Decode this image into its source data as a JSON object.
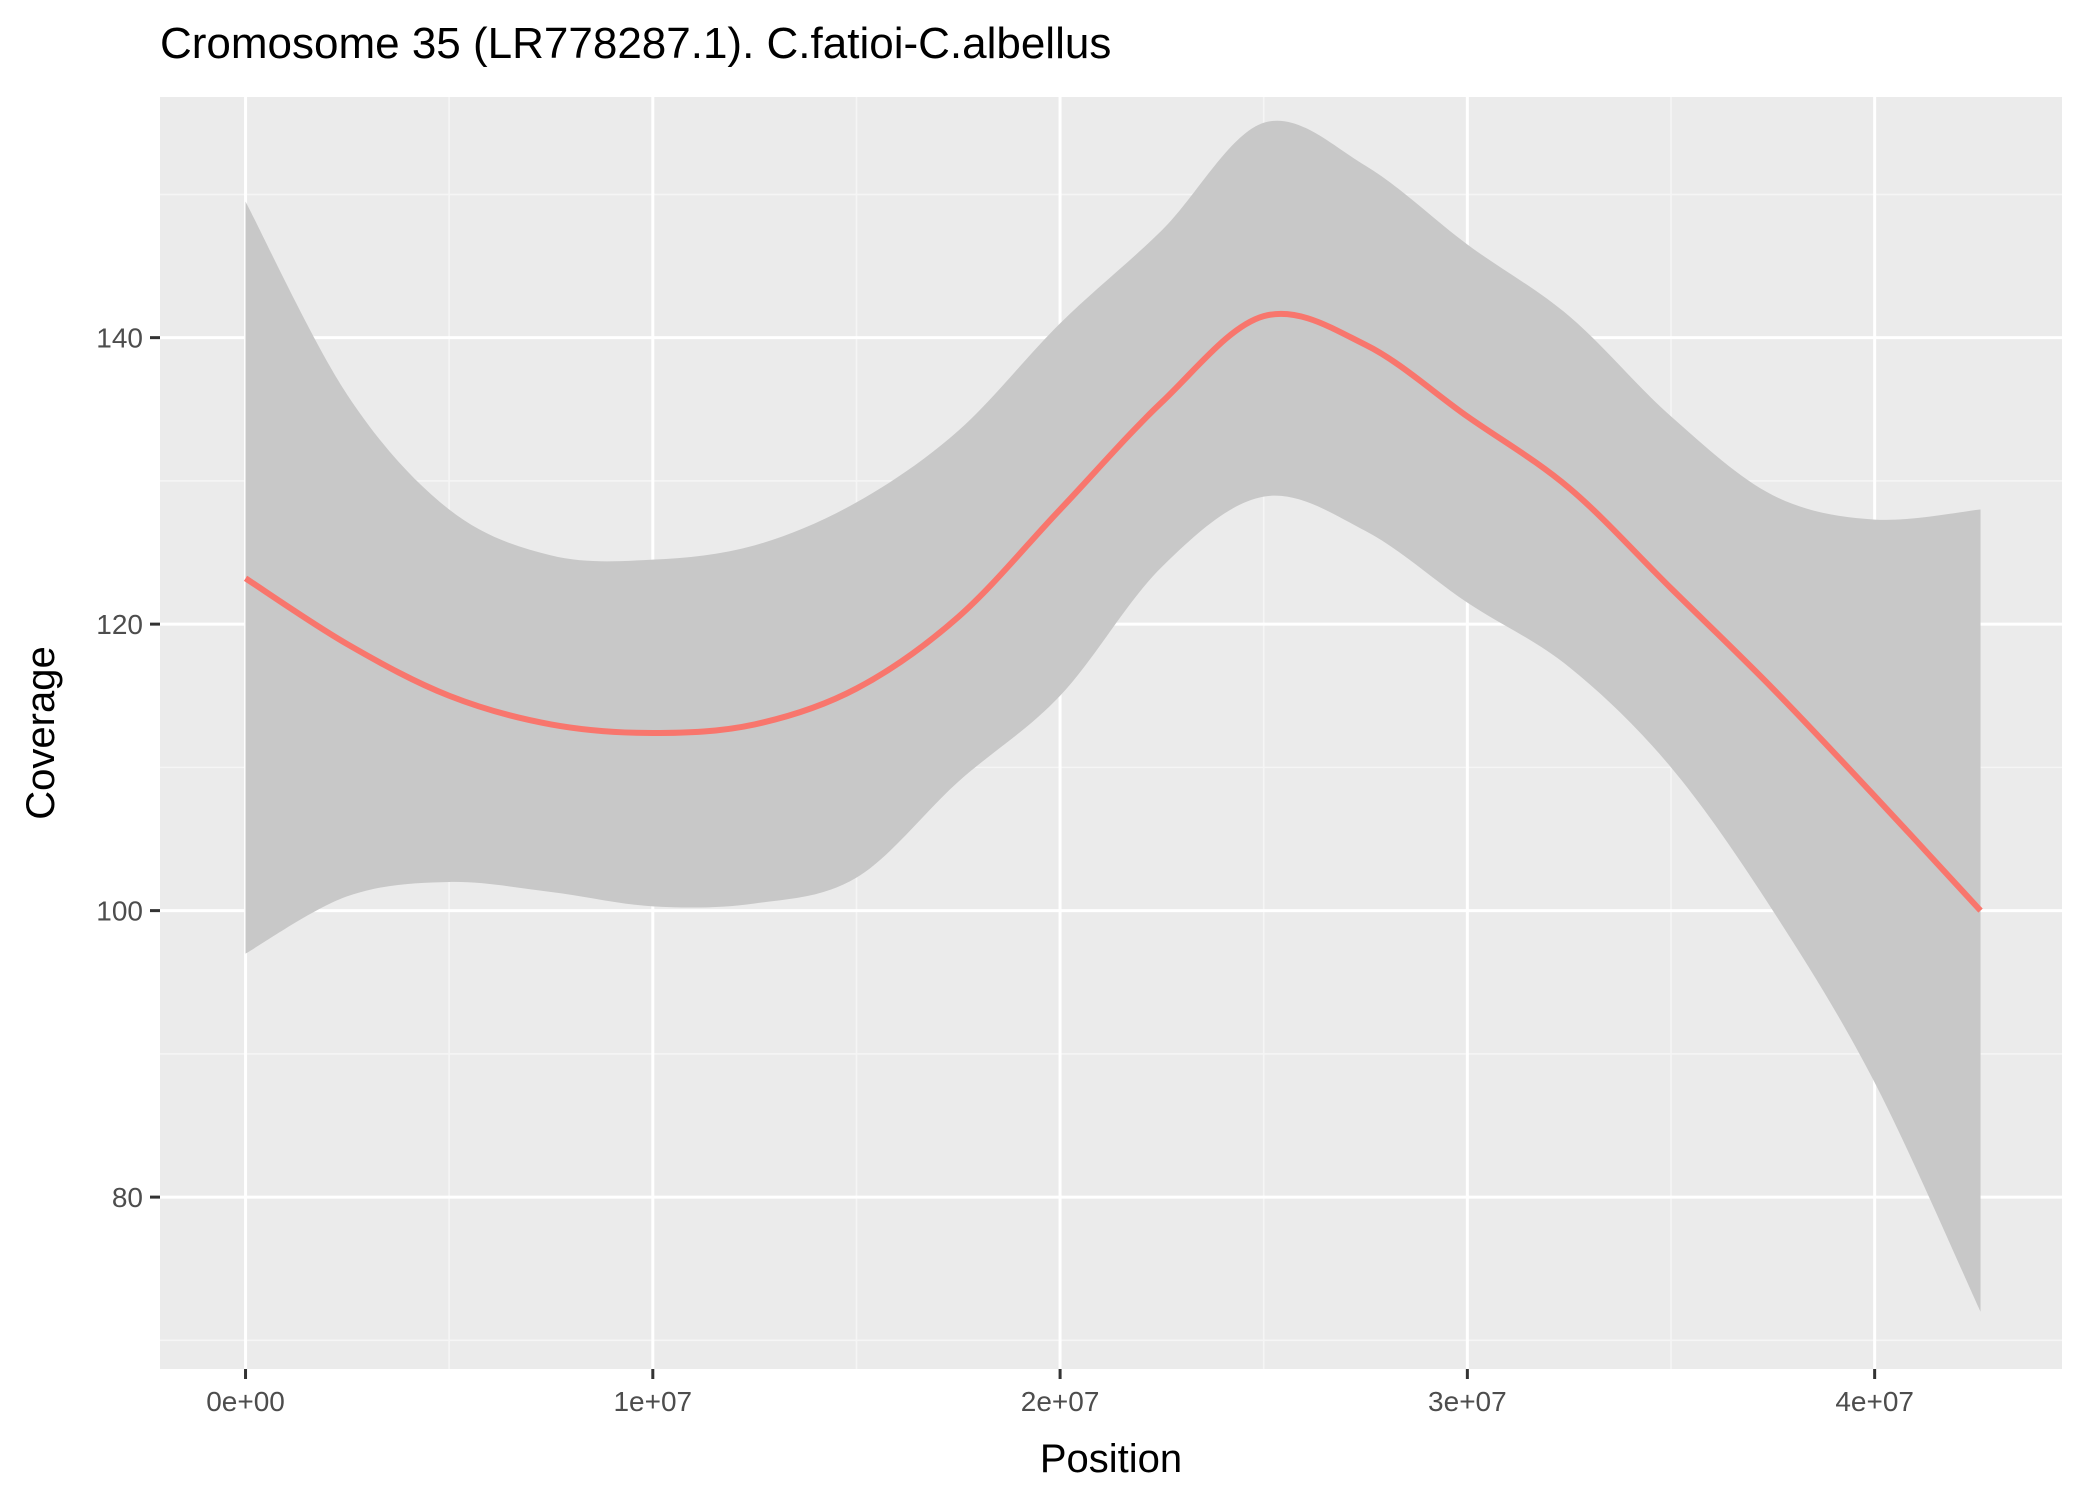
{
  "colors": {
    "panel_background": "#ebebeb",
    "grid_major": "#ffffff",
    "grid_minor": "#f5f5f5",
    "line": "#f8766d",
    "ribbon": "#c8c8c8",
    "tick_mark": "#333333"
  },
  "chart_data": {
    "type": "line",
    "title": "Cromosome 35 (LR778287.1). C.fatioi-C.albellus",
    "xlabel": "Position",
    "ylabel": "Coverage",
    "xlim": [
      -2100000,
      44600000
    ],
    "ylim": [
      68,
      156.8
    ],
    "x_major_ticks": [
      0,
      10000000,
      20000000,
      30000000,
      40000000
    ],
    "x_tick_labels": [
      "0e+00",
      "1e+07",
      "2e+07",
      "3e+07",
      "4e+07"
    ],
    "x_minor_ticks": [
      5000000,
      15000000,
      25000000,
      35000000
    ],
    "y_major_ticks": [
      80,
      100,
      120,
      140
    ],
    "y_tick_labels": [
      "80",
      "100",
      "120",
      "140"
    ],
    "y_minor_ticks": [
      70,
      90,
      110,
      130,
      150
    ],
    "grid": true,
    "legend": "none",
    "series": [
      {
        "kind": "smooth_line_with_confidence_ribbon",
        "x": [
          0,
          2500000,
          5000000,
          7500000,
          10000000,
          12500000,
          15000000,
          17500000,
          20000000,
          22500000,
          25000000,
          27500000,
          30000000,
          32500000,
          35000000,
          37500000,
          40000000,
          42600000
        ],
        "y": [
          123.2,
          118.6,
          115.0,
          113.0,
          112.4,
          113.0,
          115.5,
          120.5,
          128.0,
          135.5,
          141.5,
          139.5,
          134.5,
          129.5,
          122.5,
          115.5,
          108.0,
          100.0
        ],
        "lower": [
          97.0,
          101.0,
          102.0,
          101.3,
          100.3,
          100.5,
          102.3,
          109.0,
          115.0,
          124.0,
          128.9,
          126.5,
          121.5,
          117.0,
          110.0,
          100.0,
          88.0,
          72.0
        ],
        "upper": [
          149.5,
          136.0,
          128.0,
          124.8,
          124.5,
          125.5,
          128.5,
          133.5,
          141.0,
          147.5,
          155.0,
          152.0,
          146.5,
          141.5,
          134.5,
          129.0,
          127.3,
          128.0
        ]
      }
    ]
  }
}
